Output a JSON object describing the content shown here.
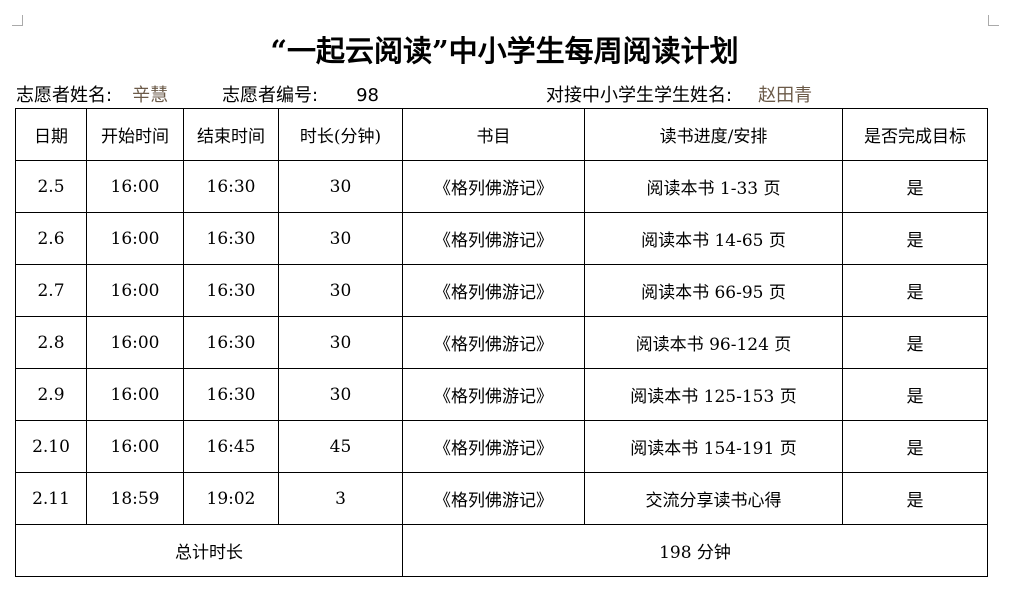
{
  "title": "“一起云阅读”中小学生每周阅读计划",
  "info": {
    "volunteer_name_label": "志愿者姓名:",
    "volunteer_name": "辛慧",
    "volunteer_id_label": "志愿者编号:",
    "volunteer_id": "98",
    "student_name_label": "对接中小学生学生姓名:",
    "student_name": "赵田青"
  },
  "headers": [
    "日期",
    "开始时间",
    "结束时间",
    "时长(分钟)",
    "书目",
    "读书进度/安排",
    "是否完成目标"
  ],
  "rows": [
    [
      "2.5",
      "16:00",
      "16:30",
      "30",
      "《格列佛游记》",
      "阅读本书 1-33 页",
      "是"
    ],
    [
      "2.6",
      "16:00",
      "16:30",
      "30",
      "《格列佛游记》",
      "阅读本书 14-65 页",
      "是"
    ],
    [
      "2.7",
      "16:00",
      "16:30",
      "30",
      "《格列佛游记》",
      "阅读本书 66-95 页",
      "是"
    ],
    [
      "2.8",
      "16:00",
      "16:30",
      "30",
      "《格列佛游记》",
      "阅读本书 96-124 页",
      "是"
    ],
    [
      "2.9",
      "16:00",
      "16:30",
      "30",
      "《格列佛游记》",
      "阅读本书 125-153 页",
      "是"
    ],
    [
      "2.10",
      "16:00",
      "16:45",
      "45",
      "《格列佛游记》",
      "阅读本书 154-191 页",
      "是"
    ],
    [
      "2.11",
      "18:59",
      "19:02",
      "3",
      "《格列佛游记》",
      "交流分享读书心得",
      "是"
    ]
  ],
  "total": {
    "label": "总计时长",
    "value": "198 分钟"
  }
}
